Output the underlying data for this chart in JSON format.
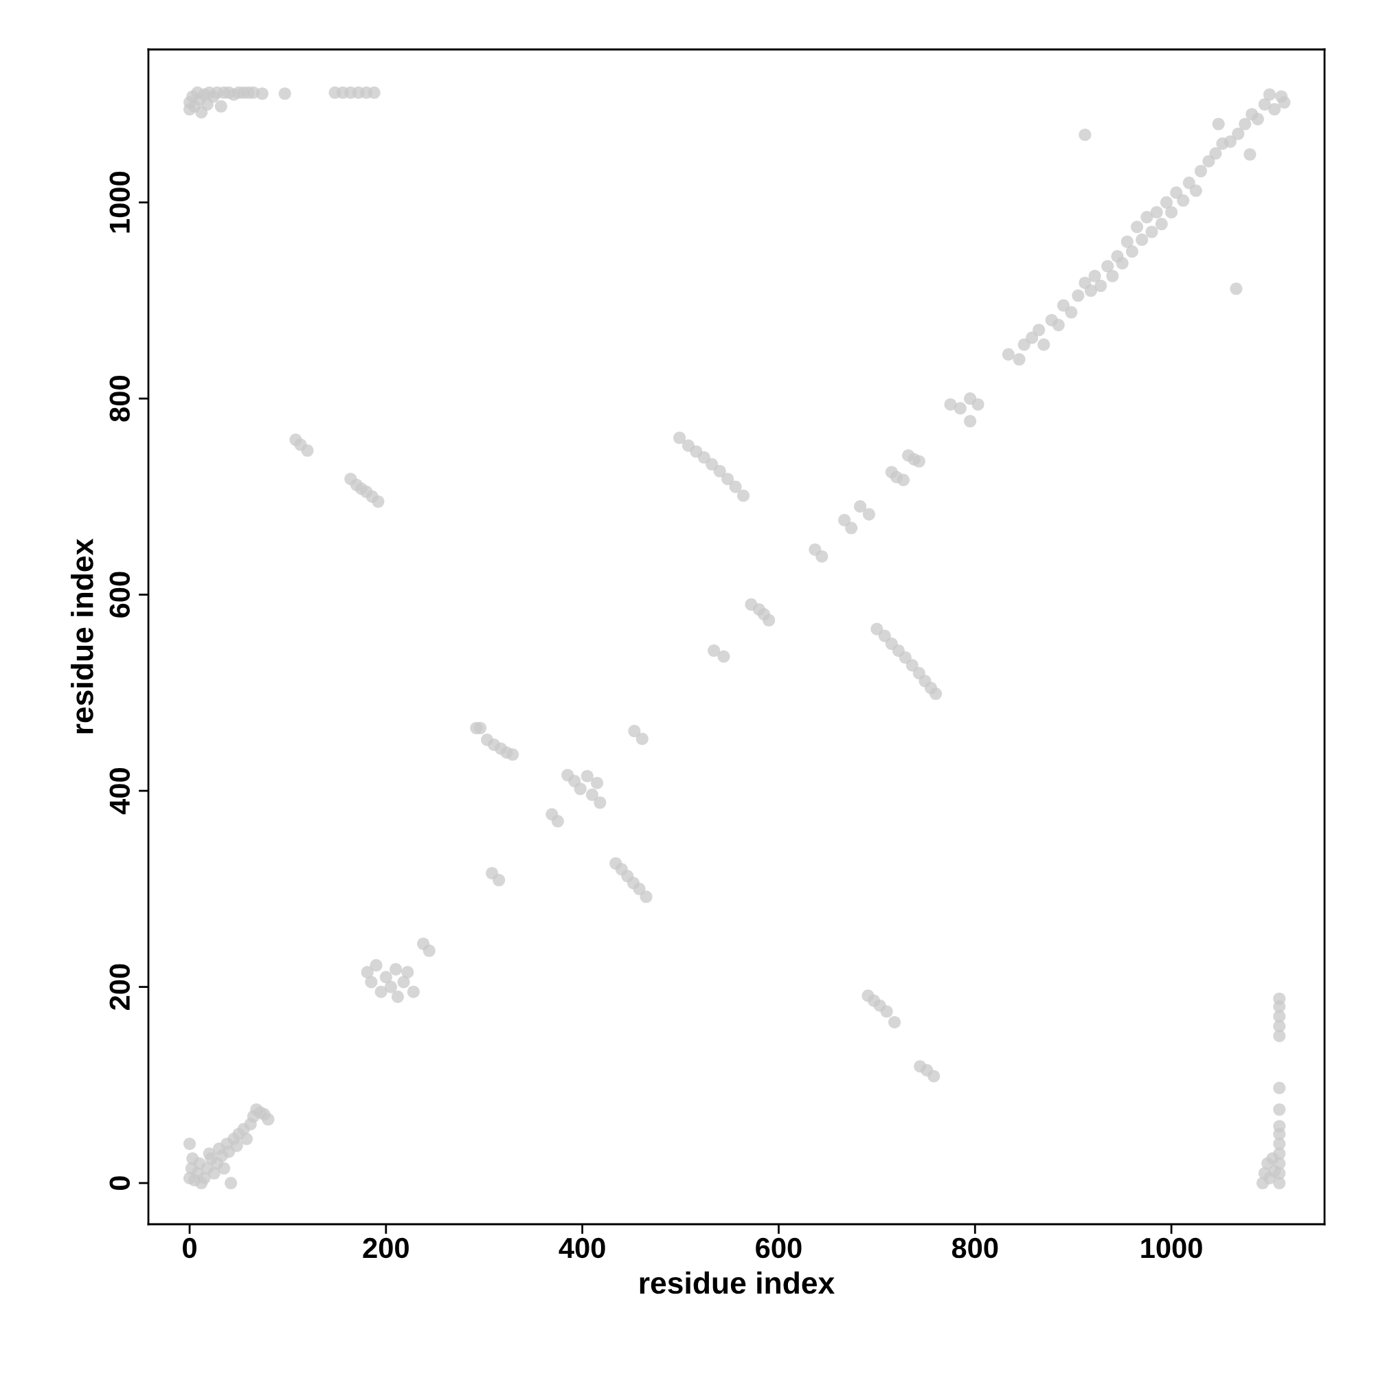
{
  "chart_data": {
    "type": "scatter",
    "xlabel": "residue index",
    "ylabel": "residue index",
    "xlim": [
      -42,
      1156
    ],
    "ylim": [
      -42,
      1156
    ],
    "xticks": [
      0,
      200,
      400,
      600,
      800,
      1000
    ],
    "yticks": [
      0,
      200,
      400,
      600,
      800,
      1000
    ],
    "grid": false,
    "marker": "circle",
    "series": [
      {
        "color": "#c8c8c8",
        "x": [
          0,
          0,
          3,
          5,
          8,
          10,
          12,
          15,
          18,
          20,
          24,
          28,
          32,
          35,
          40,
          45,
          50,
          55,
          60,
          65,
          74,
          97,
          148,
          156,
          164,
          172,
          180,
          188,
          0,
          2,
          3,
          0,
          5,
          8,
          10,
          12,
          15,
          18,
          20,
          22,
          25,
          28,
          30,
          33,
          35,
          38,
          40,
          42,
          45,
          48,
          50,
          55,
          58,
          62,
          65,
          68,
          72,
          76,
          80,
          108,
          113,
          120,
          164,
          170,
          175,
          180,
          186,
          192,
          181,
          185,
          190,
          195,
          200,
          205,
          210,
          212,
          218,
          222,
          228,
          238,
          244,
          292,
          296,
          303,
          310,
          317,
          323,
          329,
          308,
          315,
          369,
          375,
          385,
          392,
          398,
          405,
          410,
          415,
          418,
          434,
          440,
          446,
          452,
          458,
          465,
          453,
          461,
          499,
          508,
          516,
          524,
          532,
          540,
          548,
          556,
          564,
          534,
          544,
          572,
          580,
          585,
          590,
          637,
          644,
          667,
          674,
          683,
          692,
          700,
          708,
          715,
          722,
          729,
          736,
          743,
          749,
          755,
          760,
          691,
          697,
          703,
          710,
          718,
          744,
          751,
          758,
          715,
          720,
          727,
          732,
          738,
          743,
          775,
          785,
          795,
          803,
          795,
          834,
          845,
          850,
          858,
          865,
          870,
          878,
          885,
          890,
          898,
          905,
          912,
          918,
          922,
          928,
          935,
          940,
          945,
          950,
          955,
          960,
          965,
          970,
          975,
          980,
          985,
          990,
          995,
          1000,
          1005,
          1012,
          1018,
          1025,
          1030,
          1038,
          1045,
          1052,
          1060,
          1068,
          1075,
          1082,
          1088,
          1095,
          1100,
          1105,
          1112,
          1115,
          912,
          1066,
          1048,
          1080,
          1093,
          1095,
          1098,
          1100,
          1103,
          1105,
          1110,
          1110,
          1110,
          1110,
          1110,
          1110,
          1110,
          1110,
          1110,
          1110,
          1110,
          1110,
          1110,
          1110
        ],
        "values": [
          1095,
          1102,
          1108,
          1098,
          1112,
          1105,
          1092,
          1110,
          1100,
          1112,
          1108,
          1112,
          1098,
          1112,
          1112,
          1110,
          1112,
          1112,
          1112,
          1112,
          1111,
          1111,
          1112,
          1112,
          1112,
          1112,
          1112,
          1112,
          5,
          15,
          25,
          40,
          3,
          10,
          20,
          0,
          5,
          15,
          30,
          25,
          10,
          20,
          35,
          28,
          15,
          40,
          32,
          0,
          45,
          38,
          50,
          55,
          45,
          60,
          68,
          75,
          72,
          70,
          65,
          758,
          753,
          747,
          718,
          712,
          708,
          705,
          700,
          695,
          215,
          205,
          222,
          195,
          210,
          200,
          218,
          190,
          205,
          215,
          195,
          244,
          237,
          464,
          464,
          452,
          447,
          443,
          439,
          437,
          316,
          309,
          376,
          369,
          416,
          410,
          402,
          415,
          396,
          408,
          388,
          326,
          320,
          313,
          306,
          300,
          292,
          461,
          453,
          760,
          752,
          746,
          740,
          733,
          726,
          718,
          710,
          701,
          543,
          537,
          590,
          585,
          580,
          574,
          646,
          639,
          676,
          668,
          690,
          682,
          565,
          558,
          550,
          543,
          536,
          528,
          520,
          512,
          505,
          499,
          191,
          186,
          181,
          175,
          164,
          119,
          115,
          109,
          725,
          720,
          717,
          742,
          738,
          736,
          794,
          790,
          800,
          794,
          777,
          845,
          840,
          855,
          862,
          870,
          855,
          880,
          875,
          895,
          888,
          905,
          918,
          910,
          925,
          915,
          935,
          925,
          945,
          938,
          960,
          950,
          975,
          962,
          985,
          970,
          990,
          978,
          1000,
          990,
          1010,
          1002,
          1020,
          1012,
          1032,
          1042,
          1050,
          1060,
          1062,
          1070,
          1080,
          1090,
          1085,
          1100,
          1110,
          1095,
          1108,
          1102,
          1069,
          912,
          1080,
          1049,
          0,
          10,
          20,
          5,
          25,
          12,
          0,
          10,
          20,
          30,
          40,
          50,
          58,
          75,
          97,
          150,
          160,
          170,
          180,
          188
        ]
      }
    ]
  }
}
